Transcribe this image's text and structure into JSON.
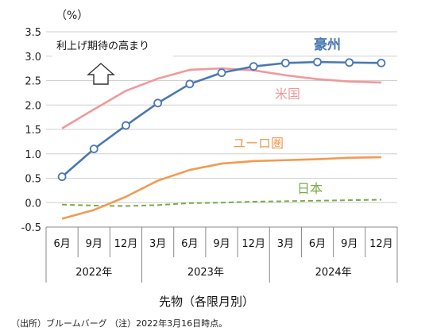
{
  "chart_data": {
    "type": "line",
    "unit_label": "（%）",
    "ylim": [
      -0.5,
      3.5
    ],
    "y_ticks": [
      "3.5",
      "3.0",
      "2.5",
      "2.0",
      "1.5",
      "1.0",
      "0.5",
      "0.0",
      "-0.5"
    ],
    "y_tick_values": [
      3.5,
      3.0,
      2.5,
      2.0,
      1.5,
      1.0,
      0.5,
      0.0,
      -0.5
    ],
    "grid": "horizontal",
    "month_labels": [
      "6月",
      "9月",
      "12月",
      "3月",
      "6月",
      "9月",
      "12月",
      "3月",
      "6月",
      "9月",
      "12月"
    ],
    "years": [
      {
        "label": "2022年",
        "span": 3
      },
      {
        "label": "2023年",
        "span": 4
      },
      {
        "label": "2024年",
        "span": 4
      }
    ],
    "xlabel": "先物（各限月別）",
    "annotation": "利上げ期待の高まり",
    "series": [
      {
        "name": "豪州",
        "color": "#4a78b2",
        "style": "solid-markers",
        "values": [
          0.53,
          1.1,
          1.58,
          2.04,
          2.43,
          2.66,
          2.79,
          2.86,
          2.88,
          2.87,
          2.86
        ]
      },
      {
        "name": "米国",
        "color": "#f0999a",
        "style": "solid",
        "values": [
          1.52,
          1.91,
          2.29,
          2.54,
          2.72,
          2.75,
          2.71,
          2.61,
          2.53,
          2.48,
          2.46
        ]
      },
      {
        "name": "ユーロ圏",
        "color": "#f09b52",
        "style": "solid",
        "values": [
          -0.33,
          -0.15,
          0.12,
          0.45,
          0.67,
          0.8,
          0.85,
          0.87,
          0.89,
          0.92,
          0.93
        ]
      },
      {
        "name": "日本",
        "color": "#7aab4a",
        "style": "dashed",
        "values": [
          -0.04,
          -0.06,
          -0.07,
          -0.05,
          -0.01,
          0.0,
          0.02,
          0.03,
          0.04,
          0.05,
          0.06
        ]
      }
    ]
  },
  "footnote": "（出所）ブルームバーグ （注）2022年3月16日時点。"
}
